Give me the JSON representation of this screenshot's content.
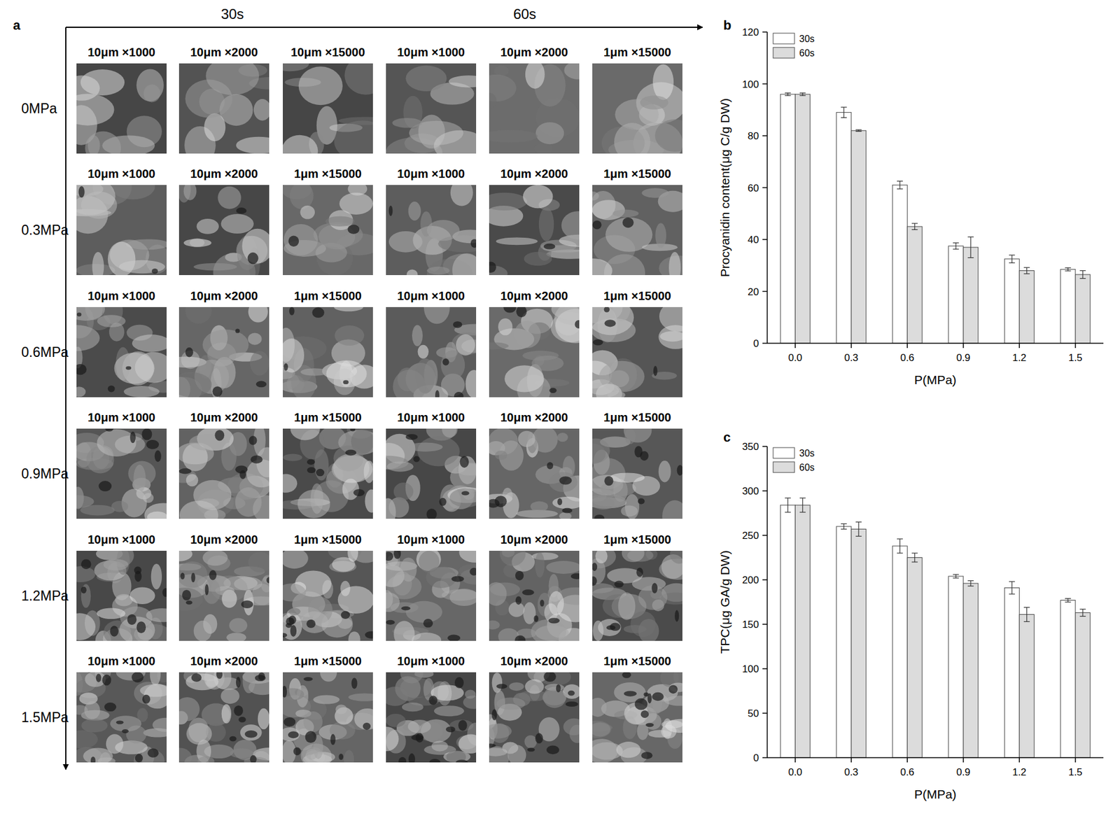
{
  "panel_a": {
    "label": "a",
    "time_labels": [
      "30s",
      "60s"
    ],
    "rows": [
      {
        "label": "0MPa",
        "image_labels": [
          "10μm ×1000",
          "10μm ×2000",
          "10μm ×15000",
          "10μm ×1000",
          "10μm ×2000",
          "1μm ×15000"
        ]
      },
      {
        "label": "0.3MPa",
        "image_labels": [
          "10μm ×1000",
          "10μm ×2000",
          "1μm ×15000",
          "10μm ×1000",
          "10μm ×2000",
          "1μm ×15000"
        ]
      },
      {
        "label": "0.6MPa",
        "image_labels": [
          "10μm ×1000",
          "10μm ×2000",
          "1μm ×15000",
          "10μm ×1000",
          "10μm ×2000",
          "1μm ×15000"
        ]
      },
      {
        "label": "0.9MPa",
        "image_labels": [
          "10μm ×1000",
          "10μm ×2000",
          "1μm ×15000",
          "10μm ×1000",
          "10μm ×2000",
          "1μm ×15000"
        ]
      },
      {
        "label": "1.2MPa",
        "image_labels": [
          "10μm ×1000",
          "10μm ×2000",
          "1μm ×15000",
          "10μm ×1000",
          "10μm ×2000",
          "1μm ×15000"
        ]
      },
      {
        "label": "1.5MPa",
        "image_labels": [
          "10μm ×1000",
          "10μm ×2000",
          "1μm ×15000",
          "10μm ×1000",
          "10μm ×2000",
          "1μm ×15000"
        ]
      }
    ]
  },
  "chart_data": [
    {
      "panel_label": "b",
      "type": "bar",
      "ylabel": "Procyanidin content(μg C/g DW)",
      "xlabel": "P(MPa)",
      "categories": [
        "0.0",
        "0.3",
        "0.6",
        "0.9",
        "1.2",
        "1.5"
      ],
      "series": [
        {
          "name": "30s",
          "color": "#ffffff",
          "values": [
            96,
            89,
            61,
            37.5,
            32.5,
            28.5
          ],
          "errors": [
            0.5,
            2,
            1.5,
            1.2,
            1.5,
            0.6
          ]
        },
        {
          "name": "60s",
          "color": "#dcdcdc",
          "values": [
            96,
            82,
            45,
            37,
            28,
            26.5
          ],
          "errors": [
            0.5,
            0.3,
            1.2,
            4,
            1.2,
            1.5
          ]
        }
      ],
      "ylim": [
        0,
        120
      ],
      "yticks": [
        0,
        20,
        40,
        60,
        80,
        100,
        120
      ],
      "legend": "top-left"
    },
    {
      "panel_label": "c",
      "type": "bar",
      "ylabel": "TPC(μg GA/g DW)",
      "xlabel": "P(MPa)",
      "categories": [
        "0.0",
        "0.3",
        "0.6",
        "0.9",
        "1.2",
        "1.5"
      ],
      "series": [
        {
          "name": "30s",
          "color": "#ffffff",
          "values": [
            284,
            260,
            238,
            204,
            191,
            177
          ],
          "errors": [
            8,
            3,
            8,
            2,
            7,
            2
          ]
        },
        {
          "name": "60s",
          "color": "#dcdcdc",
          "values": [
            284,
            257,
            225,
            196,
            161,
            163
          ],
          "errors": [
            8,
            8,
            5,
            3,
            8,
            4
          ]
        }
      ],
      "ylim": [
        0,
        350
      ],
      "yticks": [
        0,
        50,
        100,
        150,
        200,
        250,
        300,
        350
      ],
      "legend": "top-left"
    }
  ]
}
